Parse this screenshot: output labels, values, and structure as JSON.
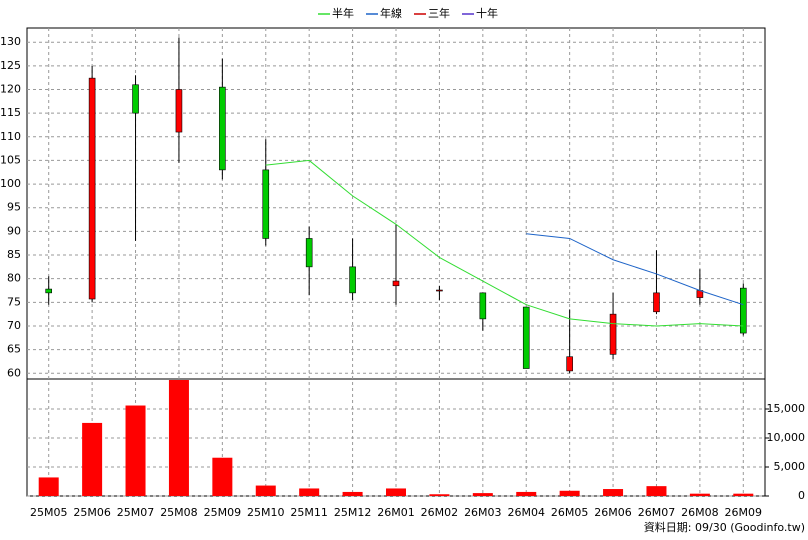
{
  "chart_data": [
    {
      "type": "candlestick",
      "categories": [
        "25M05",
        "25M06",
        "25M07",
        "25M08",
        "25M09",
        "25M10",
        "25M11",
        "25M12",
        "26M01",
        "26M02",
        "26M03",
        "26M04",
        "26M05",
        "26M06",
        "26M07",
        "26M08",
        "26M09"
      ],
      "open": [
        77.8,
        75.7,
        121,
        111,
        120.5,
        103,
        88.5,
        82.5,
        78.5,
        77.4,
        77,
        74,
        60.5,
        64,
        73,
        76,
        78
      ],
      "high": [
        80.5,
        125,
        123,
        131,
        126.5,
        109.5,
        91,
        88.5,
        91.5,
        78.5,
        77,
        74,
        73.5,
        77,
        86,
        82,
        79
      ],
      "low": [
        74.5,
        75,
        88,
        104.5,
        101,
        87,
        76.5,
        75.5,
        74.5,
        75.5,
        69,
        61,
        60,
        63,
        72.5,
        74.5,
        68
      ],
      "close": [
        77,
        122.4,
        115,
        120,
        103,
        88.5,
        82.5,
        77,
        79.5,
        77.6,
        71.5,
        61,
        63.5,
        72.5,
        77,
        77.5,
        68.5
      ],
      "up_color": "#ff0000",
      "down_color": "#00cc00",
      "series": [
        {
          "name": "半年",
          "color": "#33dd33",
          "values": [
            null,
            null,
            null,
            null,
            null,
            104,
            105,
            97.5,
            91.5,
            84.5,
            79.5,
            74.5,
            71.5,
            70.5,
            70,
            70.5,
            70
          ]
        },
        {
          "name": "年線",
          "color": "#1e64c8",
          "values": [
            null,
            null,
            null,
            null,
            null,
            null,
            null,
            null,
            null,
            null,
            null,
            89.5,
            88.5,
            84,
            81,
            77.5,
            74.5
          ]
        },
        {
          "name": "三年",
          "color": "#cc0000",
          "values": [
            null,
            null,
            null,
            null,
            null,
            null,
            null,
            null,
            null,
            null,
            null,
            null,
            null,
            null,
            null,
            null,
            null
          ]
        },
        {
          "name": "十年",
          "color": "#5533cc",
          "values": [
            null,
            null,
            null,
            null,
            null,
            null,
            null,
            null,
            null,
            null,
            null,
            null,
            null,
            null,
            null,
            null,
            null
          ]
        }
      ],
      "ylim": [
        59,
        133
      ],
      "yticks": [
        60,
        65,
        70,
        75,
        80,
        85,
        90,
        95,
        100,
        105,
        110,
        115,
        120,
        125,
        130
      ],
      "grid": true
    },
    {
      "type": "bar",
      "values": [
        3200,
        12600,
        15600,
        20000,
        6600,
        1800,
        1300,
        700,
        1300,
        300,
        500,
        700,
        900,
        1200,
        1700,
        400,
        400
      ],
      "color": "#ff0000",
      "ylim": [
        0,
        20000
      ],
      "yticks": [
        0,
        {
          "value": 5000,
          "label": "5,000"
        },
        {
          "value": 10000,
          "label": "10,000"
        },
        {
          "value": 15000,
          "label": "15,000"
        }
      ],
      "grid": true,
      "footnote": "資料日期: 09/30 (Goodinfo.tw)"
    }
  ]
}
